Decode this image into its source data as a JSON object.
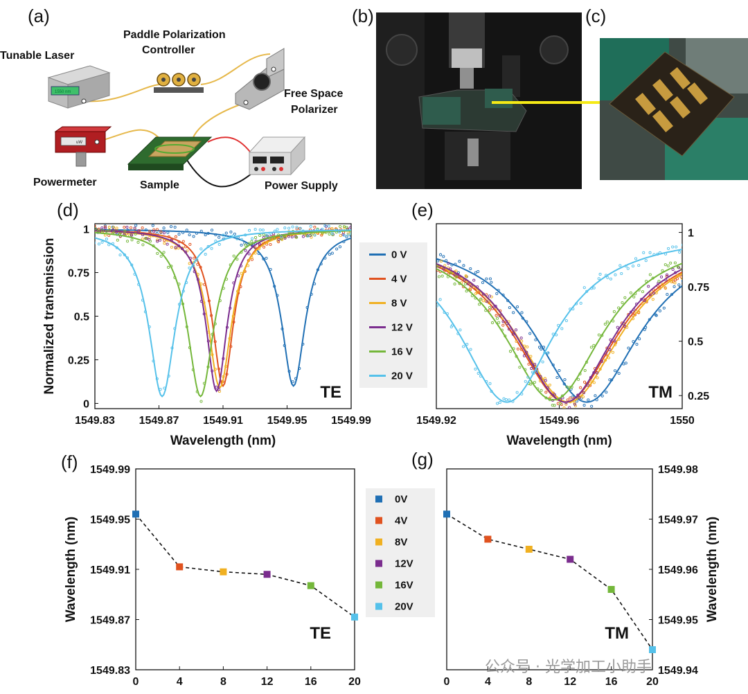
{
  "panel_labels": [
    "(a)",
    "(b)",
    "(c)",
    "(d)",
    "(e)",
    "(f)",
    "(g)"
  ],
  "setup": {
    "tunable_laser": "Tunable Laser",
    "laser_display": "1550 nm",
    "paddle_line1": "Paddle Polarization",
    "paddle_line2": "Controller",
    "polarizer_line1": "Free Space",
    "polarizer_line2": "Polarizer",
    "powermeter": "Powermeter",
    "powermeter_display": "uW",
    "sample": "Sample",
    "power_supply": "Power Supply"
  },
  "watermark": "公众号 · 光学加工小助手",
  "colors": {
    "0V": "#1f6fb4",
    "4V": "#e0521f",
    "8V": "#f0b021",
    "12V": "#7b2d8e",
    "16V": "#74b73a",
    "20V": "#55c1ea"
  },
  "chart_data": [
    {
      "type": "line",
      "panel": "(d)",
      "mode_label": "TE",
      "xlabel": "Wavelength (nm)",
      "ylabel": "Normalized transmission",
      "xlim": [
        1549.83,
        1549.99
      ],
      "ylim": [
        -0.03,
        1.03
      ],
      "xticks": [
        "1549.83",
        "1549.87",
        "1549.91",
        "1549.95",
        "1549.99"
      ],
      "yticks": [
        "0",
        "0.25",
        "0.5",
        "0.75",
        "1"
      ],
      "legend": [
        "0 V",
        "4 V",
        "8 V",
        "12 V",
        "16 V",
        "20 V"
      ],
      "series": [
        {
          "name": "0 V",
          "center": 1549.954,
          "min": 0.1,
          "width": 0.009
        },
        {
          "name": "4 V",
          "center": 1549.91,
          "min": 0.1,
          "width": 0.008
        },
        {
          "name": "8 V",
          "center": 1549.908,
          "min": 0.09,
          "width": 0.009
        },
        {
          "name": "12 V",
          "center": 1549.906,
          "min": 0.07,
          "width": 0.008
        },
        {
          "name": "16 V",
          "center": 1549.896,
          "min": 0.04,
          "width": 0.01
        },
        {
          "name": "20 V",
          "center": 1549.872,
          "min": 0.04,
          "width": 0.01
        }
      ]
    },
    {
      "type": "line",
      "panel": "(e)",
      "mode_label": "TM",
      "xlabel": "Wavelength (nm)",
      "ylabel": "",
      "xlim": [
        1549.92,
        1550
      ],
      "ylim": [
        0.19,
        1.04
      ],
      "xticks": [
        "1549.92",
        "1549.96",
        "1550"
      ],
      "yticks": [
        "0.25",
        "0.5",
        "0.75",
        "1"
      ],
      "series": [
        {
          "name": "0 V",
          "center": 1549.969,
          "min": 0.22,
          "width": 0.021
        },
        {
          "name": "4 V",
          "center": 1549.962,
          "min": 0.22,
          "width": 0.021
        },
        {
          "name": "8 V",
          "center": 1549.963,
          "min": 0.22,
          "width": 0.021
        },
        {
          "name": "12 V",
          "center": 1549.962,
          "min": 0.22,
          "width": 0.02
        },
        {
          "name": "16 V",
          "center": 1549.958,
          "min": 0.23,
          "width": 0.02
        },
        {
          "name": "20 V",
          "center": 1549.943,
          "min": 0.22,
          "width": 0.019
        }
      ]
    },
    {
      "type": "scatter",
      "panel": "(f)",
      "mode_label": "TE",
      "xlabel": "Voltage (V)",
      "ylabel": "Wavelength (nm)",
      "xlim": [
        0,
        20
      ],
      "ylim": [
        1549.83,
        1549.99
      ],
      "xticks": [
        "0",
        "4",
        "8",
        "12",
        "16",
        "20"
      ],
      "yticks": [
        "1549.83",
        "1549.87",
        "1549.91",
        "1549.95",
        "1549.99"
      ],
      "legend": [
        "0V",
        "4V",
        "8V",
        "12V",
        "16V",
        "20V"
      ],
      "x": [
        0,
        4,
        8,
        12,
        16,
        20
      ],
      "y": [
        1549.954,
        1549.912,
        1549.908,
        1549.906,
        1549.897,
        1549.872
      ]
    },
    {
      "type": "scatter",
      "panel": "(g)",
      "mode_label": "TM",
      "xlabel": "Voltage (V)",
      "ylabel": "Wavelength (nm)",
      "xlim": [
        0,
        20
      ],
      "ylim": [
        1549.94,
        1549.98
      ],
      "xticks": [
        "0",
        "4",
        "8",
        "12",
        "16",
        "20"
      ],
      "yticks": [
        "1549.94",
        "1549.95",
        "1549.96",
        "1549.97",
        "1549.98"
      ],
      "x": [
        0,
        4,
        8,
        12,
        16,
        20
      ],
      "y": [
        1549.971,
        1549.966,
        1549.964,
        1549.962,
        1549.956,
        1549.944
      ]
    }
  ]
}
